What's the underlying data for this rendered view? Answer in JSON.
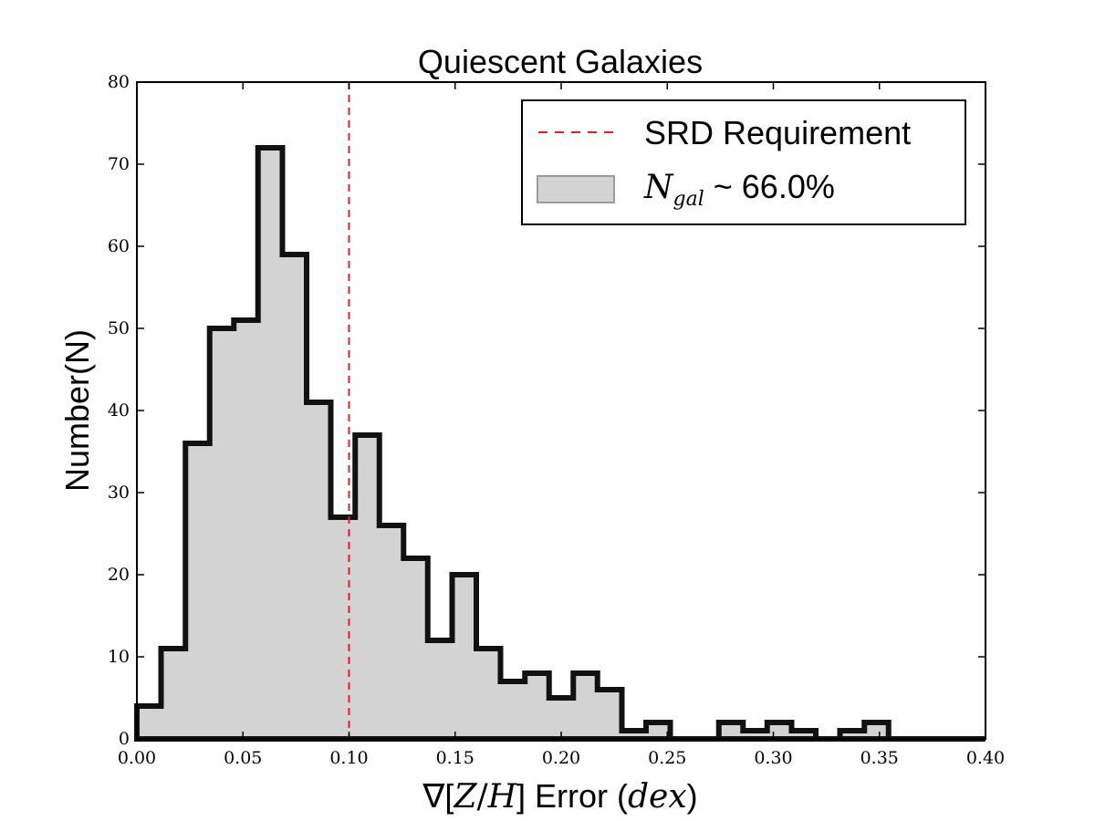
{
  "chart_data": {
    "type": "bar",
    "title": "Quiescent Galaxies",
    "xlabel": {
      "prefix": "∇[",
      "italic_z": "Z",
      "slash": "/",
      "italic_h": "H",
      "suffix": "] Error (",
      "italic_unit": "dex",
      "close": ")"
    },
    "ylabel": "Number(N)",
    "xlim": [
      0.0,
      0.4
    ],
    "ylim": [
      0,
      80
    ],
    "x_ticks": [
      "0.00",
      "0.05",
      "0.10",
      "0.15",
      "0.20",
      "0.25",
      "0.30",
      "0.35",
      "0.40"
    ],
    "y_ticks": [
      "0",
      "10",
      "20",
      "30",
      "40",
      "50",
      "60",
      "70",
      "80"
    ],
    "bin_edges": [
      0.0,
      0.0114,
      0.0229,
      0.0343,
      0.0457,
      0.0571,
      0.0686,
      0.08,
      0.0914,
      0.1029,
      0.1143,
      0.1257,
      0.1371,
      0.1486,
      0.16,
      0.1714,
      0.1829,
      0.1943,
      0.2057,
      0.2171,
      0.2286,
      0.24,
      0.2514,
      0.2629,
      0.2743,
      0.2857,
      0.2971,
      0.3086,
      0.32,
      0.3314,
      0.3429,
      0.3543,
      0.3657,
      0.3771,
      0.3886,
      0.4
    ],
    "counts": [
      4,
      11,
      36,
      50,
      51,
      72,
      59,
      41,
      27,
      37,
      26,
      22,
      12,
      20,
      11,
      7,
      8,
      5,
      8,
      6,
      1,
      2,
      0,
      0,
      2,
      1,
      2,
      1,
      0,
      1,
      2,
      0,
      0,
      0,
      0
    ],
    "vline": {
      "x": 0.1,
      "color": "#e8192c",
      "style": "dashed"
    },
    "legend": {
      "position": "top-right",
      "entries": [
        {
          "label": "SRD Requirement",
          "kind": "line"
        },
        {
          "label_italic_n": "N",
          "label_sub": "gal",
          "label_rest": " ~ 66.0%",
          "kind": "patch"
        }
      ]
    },
    "colors": {
      "fill": "#d3d3d3",
      "edge": "#111111",
      "vline": "#e8192c"
    }
  }
}
